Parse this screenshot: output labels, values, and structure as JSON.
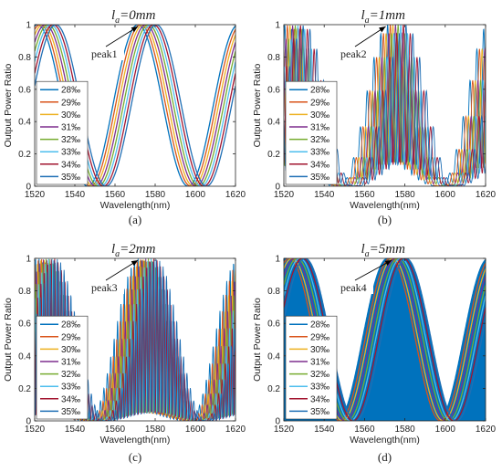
{
  "chart_data": [
    {
      "type": "line",
      "panel": "(a)",
      "title": "l_a=0mm",
      "title_main": "l",
      "title_sub": "a",
      "title_rest": "=0mm",
      "xlabel": "Wavelength(nm)",
      "ylabel": "Output Power Ratio",
      "xlim": [
        1520,
        1620
      ],
      "ylim": [
        0,
        1
      ],
      "xticks": [
        "1520",
        "1540",
        "1560",
        "1580",
        "1600",
        "1620"
      ],
      "yticks": [
        "0",
        "0.2",
        "0.4",
        "0.6",
        "0.8",
        "1"
      ],
      "legend": [
        "28‰",
        "29‰",
        "30‰",
        "31‰",
        "32‰",
        "33‰",
        "34‰",
        "35‰"
      ],
      "legend_placement": "lower-left",
      "annotation": {
        "text": "peak1",
        "points_to": [
          1576,
          1.0
        ]
      },
      "envelope": "none",
      "fringe_period_nm": 50,
      "fringe_shift_nm": 1.3,
      "peak_wavelength_nm": 1576,
      "caption": "(a)"
    },
    {
      "type": "line",
      "panel": "(b)",
      "title": "l_a=1mm",
      "title_main": "l",
      "title_sub": "a",
      "title_rest": "=1mm",
      "xlabel": "Wavelength(nm)",
      "ylabel": "Output Power Ratio",
      "xlim": [
        1520,
        1620
      ],
      "ylim": [
        0,
        1
      ],
      "xticks": [
        "1520",
        "1540",
        "1560",
        "1580",
        "1600",
        "1620"
      ],
      "yticks": [
        "0",
        "0.2",
        "0.4",
        "0.6",
        "0.8",
        "1"
      ],
      "legend": [
        "28‰",
        "29‰",
        "30‰",
        "31‰",
        "32‰",
        "33‰",
        "34‰",
        "35‰"
      ],
      "legend_placement": "lower-left",
      "annotation": {
        "text": "peak2",
        "points_to": [
          1575,
          1.0
        ]
      },
      "envelope": "oscillating",
      "fringe_period_nm": 50,
      "fringe_shift_nm": 1.3,
      "carrier_period_nm": 3.4,
      "peak_wavelength_nm": 1576,
      "caption": "(b)"
    },
    {
      "type": "line",
      "panel": "(c)",
      "title": "l_a=2mm",
      "title_main": "l",
      "title_sub": "a",
      "title_rest": "=2mm",
      "xlabel": "Wavelength(nm)",
      "ylabel": "Output Power Ratio",
      "xlim": [
        1520,
        1620
      ],
      "ylim": [
        0,
        1
      ],
      "xticks": [
        "1520",
        "1540",
        "1560",
        "1580",
        "1600",
        "1620"
      ],
      "yticks": [
        "0",
        "0.2",
        "0.4",
        "0.6",
        "0.8",
        "1"
      ],
      "legend": [
        "28‰",
        "29‰",
        "30‰",
        "31‰",
        "32‰",
        "33‰",
        "34‰",
        "35‰"
      ],
      "legend_placement": "lower-left",
      "annotation": {
        "text": "peak3",
        "points_to": [
          1576,
          1.0
        ]
      },
      "envelope": "oscillating-dense",
      "fringe_period_nm": 50,
      "fringe_shift_nm": 1.3,
      "carrier_period_nm": 1.7,
      "peak_wavelength_nm": 1576,
      "caption": "(c)"
    },
    {
      "type": "line",
      "panel": "(d)",
      "title": "l_a=5mm",
      "title_main": "l",
      "title_sub": "a",
      "title_rest": "=5mm",
      "xlabel": "Wavelength(nm)",
      "ylabel": "Output Power Ratio",
      "xlim": [
        1520,
        1620
      ],
      "ylim": [
        0,
        1
      ],
      "xticks": [
        "1520",
        "1540",
        "1560",
        "1580",
        "1600",
        "1620"
      ],
      "yticks": [
        "0",
        "0.2",
        "0.4",
        "0.6",
        "0.8",
        "1"
      ],
      "legend": [
        "28‰",
        "29‰",
        "30‰",
        "31‰",
        "32‰",
        "33‰",
        "34‰",
        "35‰"
      ],
      "legend_placement": "lower-left",
      "annotation": {
        "text": "peak4",
        "points_to": [
          1578,
          1.0
        ]
      },
      "envelope": "filled",
      "fringe_period_nm": 50,
      "fringe_shift_nm": 1.3,
      "peak_wavelength_nm": 1576,
      "caption": "(d)"
    }
  ],
  "colors": [
    "#0072BD",
    "#D95319",
    "#EDB120",
    "#7E2F8E",
    "#77AC30",
    "#4DBEEE",
    "#A2142F",
    "#1f6fb5"
  ]
}
